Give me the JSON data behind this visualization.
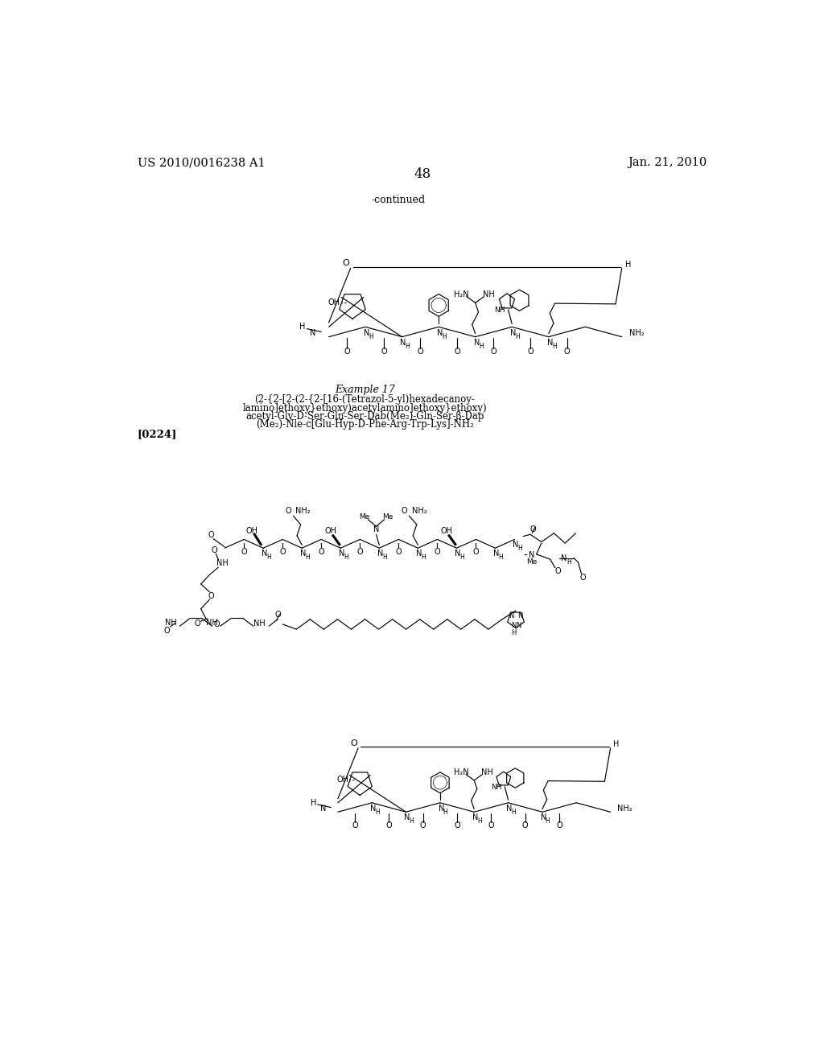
{
  "background_color": "#ffffff",
  "font_color": "#000000",
  "header_left": "US 2010/0016238 A1",
  "header_right": "Jan. 21, 2010",
  "page_number": "48",
  "continued_text": "-continued",
  "example_title": "Example 17",
  "example_lines": [
    "(2-{2-[2-(2-{2-[16-(Tetrazol-5-yl)hexadecanoy-",
    "lamino]ethoxy}ethoxy)acetylamino]ethoxy}ethoxy)",
    "acetyl-Gly-D-Ser-Gln-Ser-Dab(Me₂)-Gln-Ser-β-Dap",
    "(Me₂)-Nle-c[Glu-Hyp-D-Phe-Arg-Trp-Lys]-NH₂"
  ],
  "paragraph_ref": "[0224]",
  "header_fontsize": 10.5,
  "page_num_fontsize": 12,
  "continued_fontsize": 9,
  "example_title_fontsize": 9,
  "example_body_fontsize": 8.5,
  "paragraph_fontsize": 9.5
}
